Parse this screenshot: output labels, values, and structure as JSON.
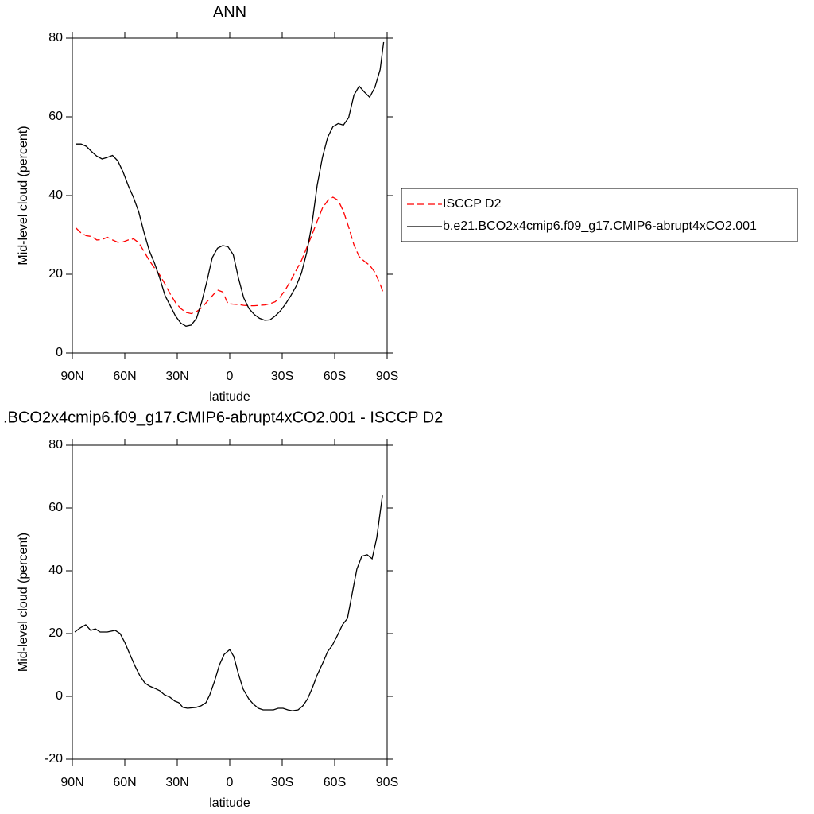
{
  "chart_data": [
    {
      "type": "line",
      "title": "ANN",
      "xlabel": "latitude",
      "ylabel": "Mid-level cloud (percent)",
      "x": [
        88,
        85,
        82,
        79,
        76,
        73,
        70,
        67,
        64,
        61,
        58,
        55,
        52,
        49,
        46,
        43,
        40,
        37,
        34,
        31,
        28,
        25,
        22,
        19,
        16,
        13,
        10,
        7,
        4,
        1,
        -2,
        -5,
        -8,
        -11,
        -14,
        -17,
        -20,
        -23,
        -26,
        -29,
        -32,
        -35,
        -38,
        -41,
        -44,
        -47,
        -50,
        -53,
        -56,
        -59,
        -62,
        -65,
        -68,
        -71,
        -74,
        -77,
        -80,
        -83,
        -86,
        -88
      ],
      "series": [
        {
          "name": "ISCCP D2",
          "color": "#ff0000",
          "line_style": "dashed",
          "values": [
            31.8,
            30.5,
            29.8,
            29.6,
            28.7,
            28.8,
            29.4,
            28.7,
            28.1,
            28.2,
            28.7,
            29,
            28,
            25.8,
            23.5,
            21.6,
            19.8,
            17.5,
            15,
            12.8,
            11.3,
            10.3,
            10,
            10.5,
            11.5,
            13,
            14.5,
            16,
            15.5,
            12.5,
            12.4,
            12.3,
            12.1,
            12,
            12,
            12.1,
            12.2,
            12.5,
            13,
            14.3,
            16.2,
            18.5,
            21,
            23.5,
            26.7,
            30,
            33.5,
            36.8,
            38.7,
            39.6,
            38.8,
            36,
            32,
            27.5,
            24.5,
            23.3,
            22.3,
            20.5,
            17.5,
            15
          ]
        },
        {
          "name": "b.e21.BCO2x4cmip6.f09_g17.CMIP6-abrupt4xCO2.001",
          "color": "#000000",
          "line_style": "solid",
          "values": [
            53.1,
            53.1,
            52.5,
            51.2,
            50,
            49.3,
            49.7,
            50.2,
            48.8,
            46,
            42.5,
            39.5,
            35.8,
            30.6,
            26,
            22.8,
            19,
            14.6,
            12,
            9.4,
            7.6,
            6.8,
            7.1,
            8.8,
            13,
            18.3,
            24.2,
            26.6,
            27.3,
            27,
            25,
            19,
            14,
            11.3,
            9.8,
            8.8,
            8.3,
            8.4,
            9.4,
            10.7,
            12.5,
            14.6,
            17,
            20.3,
            25.5,
            32.7,
            42.6,
            49.7,
            54.8,
            57.5,
            58.3,
            57.9,
            59.8,
            65.5,
            67.8,
            66.3,
            65,
            67.5,
            72,
            79
          ]
        }
      ],
      "xlim": [
        90,
        -90
      ],
      "xticks": [
        {
          "value": 90,
          "label": "90N"
        },
        {
          "value": 60,
          "label": "60N"
        },
        {
          "value": 30,
          "label": "30N"
        },
        0,
        {
          "value": -30,
          "label": "30S"
        },
        {
          "value": -60,
          "label": "60S"
        },
        {
          "value": -90,
          "label": "90S"
        }
      ],
      "ylim": [
        0,
        80
      ],
      "yticks": [
        0,
        20,
        40,
        60,
        80
      ],
      "legend": "right"
    },
    {
      "type": "line",
      "title": ".BCO2x4cmip6.f09_g17.CMIP6-abrupt4xCO2.001 - ISCCP D2",
      "xlabel": "latitude",
      "ylabel": "Mid-level cloud (percent)",
      "x": [
        88.6,
        85.5,
        82.3,
        79.5,
        76.8,
        74.1,
        70,
        65.5,
        62.7,
        60,
        57.3,
        54.1,
        51.4,
        48.6,
        45.9,
        42.7,
        40,
        37.3,
        34.1,
        31.4,
        29.1,
        26.8,
        24.1,
        19.1,
        16.4,
        13.6,
        11.4,
        8.6,
        5.9,
        3.2,
        0,
        -2.3,
        -5,
        -7.7,
        -10.9,
        -13.6,
        -16.4,
        -19.1,
        -25,
        -27.7,
        -30.5,
        -33.2,
        -35.9,
        -39.1,
        -41.8,
        -44.5,
        -47.3,
        -50,
        -53.2,
        -55.9,
        -58.6,
        -61.8,
        -64.5,
        -67.3,
        -70,
        -72.7,
        -75.5,
        -78.6,
        -81.4,
        -84.1,
        -87.3
      ],
      "series": [
        {
          "color": "#000000",
          "line_style": "solid",
          "values": [
            20.5,
            21.8,
            22.8,
            21,
            21.5,
            20.5,
            20.5,
            21,
            20,
            17.2,
            13.7,
            9.6,
            6.6,
            4.3,
            3.3,
            2.5,
            1.8,
            0.5,
            -0.3,
            -1.5,
            -2,
            -3.5,
            -3.8,
            -3.5,
            -3,
            -2,
            0.5,
            5,
            10,
            13.4,
            14.9,
            12.7,
            7.1,
            2.3,
            -0.8,
            -2.5,
            -3.8,
            -4.3,
            -4.3,
            -3.8,
            -3.8,
            -4.3,
            -4.6,
            -4.3,
            -3,
            -0.8,
            2.8,
            6.8,
            10.6,
            14.2,
            16.2,
            19.7,
            22.8,
            24.8,
            32.7,
            40.5,
            44.6,
            45.1,
            43.8,
            50.6,
            64
          ]
        }
      ],
      "xlim": [
        90,
        -90
      ],
      "xticks": [
        {
          "value": 90,
          "label": "90N"
        },
        {
          "value": 60,
          "label": "60N"
        },
        {
          "value": 30,
          "label": "30N"
        },
        0,
        {
          "value": -30,
          "label": "30S"
        },
        {
          "value": -60,
          "label": "60S"
        },
        {
          "value": -90,
          "label": "90S"
        }
      ],
      "ylim": [
        -20,
        80
      ],
      "yticks": [
        -20,
        0,
        20,
        40,
        60,
        80
      ]
    }
  ]
}
